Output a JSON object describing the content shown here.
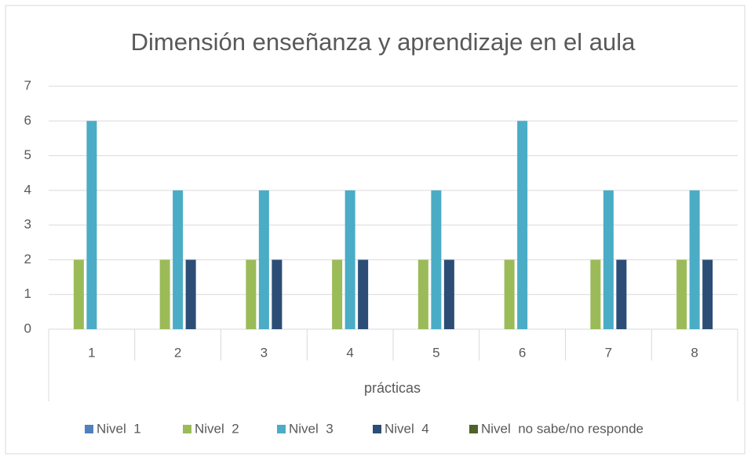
{
  "chart_data": {
    "type": "bar",
    "title": "Dimensión enseñanza y aprendizaje en el aula",
    "x_label": "prácticas",
    "categories": [
      "1",
      "2",
      "3",
      "4",
      "5",
      "6",
      "7",
      "8"
    ],
    "series": [
      {
        "name": "Nivel  1",
        "color": "#4f81bd",
        "values": [
          0,
          0,
          0,
          0,
          0,
          0,
          0,
          0
        ]
      },
      {
        "name": "Nivel  2",
        "color": "#9bbb59",
        "values": [
          2,
          2,
          2,
          2,
          2,
          2,
          2,
          2
        ]
      },
      {
        "name": "Nivel  3",
        "color": "#4bacc6",
        "values": [
          6,
          4,
          4,
          4,
          4,
          6,
          4,
          4
        ]
      },
      {
        "name": "Nivel  4",
        "color": "#2c4d75",
        "values": [
          0,
          2,
          2,
          2,
          2,
          0,
          2,
          2
        ]
      },
      {
        "name": "Nivel  no sabe/no responde",
        "color": "#4f6228",
        "values": [
          0,
          0,
          0,
          0,
          0,
          0,
          0,
          0
        ]
      }
    ],
    "ylim": [
      0,
      7
    ],
    "yticks": [
      0,
      1,
      2,
      3,
      4,
      5,
      6,
      7
    ],
    "grid": true,
    "legend": "bottom"
  }
}
